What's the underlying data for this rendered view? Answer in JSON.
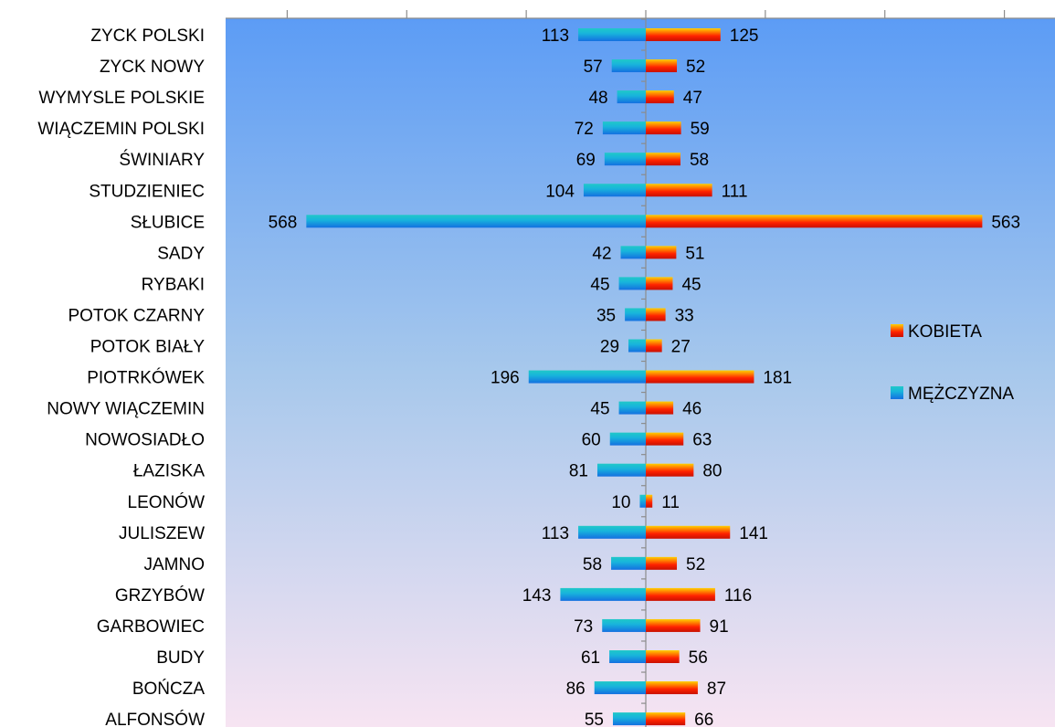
{
  "chart_data": {
    "type": "bar",
    "orientation": "horizontal-population-pyramid",
    "categories": [
      "ZYCK POLSKI",
      "ZYCK NOWY",
      "WYMYSLE POLSKIE",
      "WIĄCZEMIN POLSKI",
      "ŚWINIARY",
      "STUDZIENIEC",
      "SŁUBICE",
      "SADY",
      "RYBAKI",
      "POTOK CZARNY",
      "POTOK BIAŁY",
      "PIOTRKÓWEK",
      "NOWY WIĄCZEMIN",
      "NOWOSIADŁO",
      "ŁAZISKA",
      "LEONÓW",
      "JULISZEW",
      "JAMNO",
      "GRZYBÓW",
      "GARBOWIEC",
      "BUDY",
      "BOŃCZA",
      "ALFONSÓW"
    ],
    "series": [
      {
        "name": "KOBIETA",
        "side": "right",
        "color": "#ff2a00",
        "values": [
          125,
          52,
          47,
          59,
          58,
          111,
          563,
          51,
          45,
          33,
          27,
          181,
          46,
          63,
          80,
          11,
          141,
          52,
          116,
          91,
          56,
          87,
          66
        ]
      },
      {
        "name": "MĘŻCZYZNA",
        "side": "left",
        "color": "#1aa7d8",
        "values": [
          113,
          57,
          48,
          72,
          69,
          104,
          568,
          42,
          45,
          35,
          29,
          196,
          45,
          60,
          81,
          10,
          113,
          58,
          143,
          73,
          61,
          86,
          55
        ]
      }
    ],
    "xlim": [
      -700,
      700
    ],
    "title": "",
    "xlabel": "",
    "ylabel": "",
    "grid": false,
    "legend_position": "right",
    "background": {
      "top": "#5c9cf5",
      "middle": "#a7c8ec",
      "bottom": "#f7e4f2"
    }
  }
}
